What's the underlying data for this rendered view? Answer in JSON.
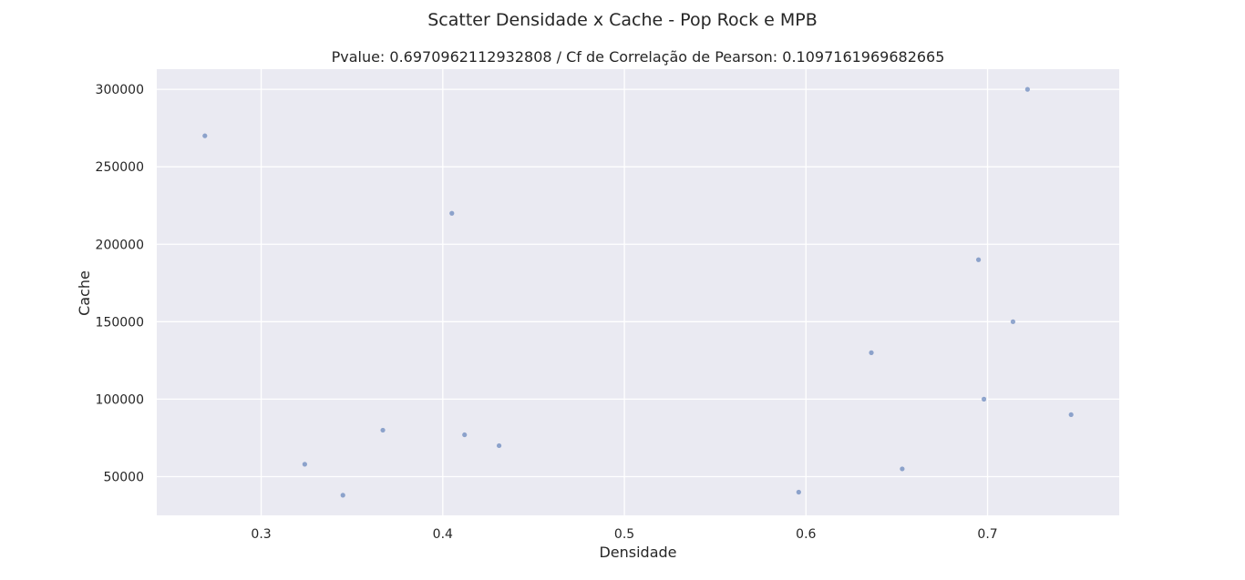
{
  "chart_data": {
    "type": "scatter",
    "suptitle": "Scatter Densidade x Cache - Pop Rock e MPB",
    "title": "Pvalue: 0.6970962112932808 / Cf de Correlação de Pearson: 0.1097161969682665",
    "xlabel": "Densidade",
    "ylabel": "Cache",
    "xlim": [
      0.2425,
      0.7725
    ],
    "ylim": [
      25000,
      313000
    ],
    "xticks": [
      0.3,
      0.4,
      0.5,
      0.6,
      0.7
    ],
    "xtick_labels": [
      "0.3",
      "0.4",
      "0.5",
      "0.6",
      "0.7"
    ],
    "yticks": [
      50000,
      100000,
      150000,
      200000,
      250000,
      300000
    ],
    "ytick_labels": [
      "50000",
      "100000",
      "150000",
      "200000",
      "250000",
      "300000"
    ],
    "grid": true,
    "background": "#eaeaf2",
    "marker_color": "#4c72b0",
    "points": [
      {
        "x": 0.269,
        "y": 270000
      },
      {
        "x": 0.324,
        "y": 58000
      },
      {
        "x": 0.345,
        "y": 38000
      },
      {
        "x": 0.367,
        "y": 80000
      },
      {
        "x": 0.405,
        "y": 220000
      },
      {
        "x": 0.412,
        "y": 77000
      },
      {
        "x": 0.431,
        "y": 70000
      },
      {
        "x": 0.596,
        "y": 40000
      },
      {
        "x": 0.636,
        "y": 130000
      },
      {
        "x": 0.653,
        "y": 55000
      },
      {
        "x": 0.695,
        "y": 190000
      },
      {
        "x": 0.698,
        "y": 100000
      },
      {
        "x": 0.714,
        "y": 150000
      },
      {
        "x": 0.722,
        "y": 300000
      },
      {
        "x": 0.746,
        "y": 90000
      }
    ]
  }
}
